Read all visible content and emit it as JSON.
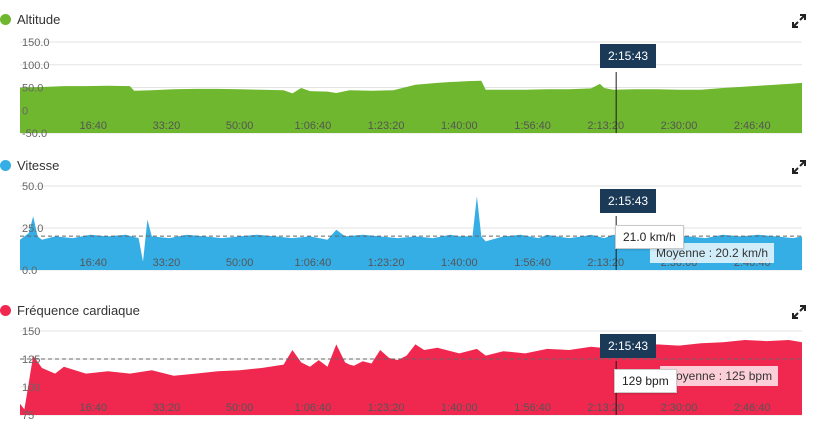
{
  "cursor": {
    "time_label": "2:15:43",
    "time_min": 135.7
  },
  "chart_data": [
    {
      "type": "area",
      "title": "Altitude",
      "color": "#6fb72e",
      "ylim": [
        -50,
        150
      ],
      "yticks": [
        "150.0",
        "100.0",
        "50.0",
        "0",
        "-50.0"
      ],
      "ytick_values": [
        150,
        100,
        50,
        0,
        -50
      ],
      "xlim": [
        0,
        178
      ],
      "xtick_labels": [
        "16:40",
        "33:20",
        "50:00",
        "1:06:40",
        "1:23:20",
        "1:40:00",
        "1:56:40",
        "2:13:20",
        "2:30:00",
        "2:46:40"
      ],
      "xtick_values": [
        16.67,
        33.33,
        50,
        66.67,
        83.33,
        100,
        116.67,
        133.33,
        150,
        166.67
      ],
      "series": [
        {
          "x": [
            0,
            5,
            10,
            15,
            20,
            25,
            26,
            30,
            35,
            40,
            45,
            50,
            55,
            60,
            62,
            64,
            66,
            70,
            72,
            75,
            80,
            85,
            90,
            95,
            98,
            100,
            102,
            105,
            106,
            110,
            115,
            120,
            125,
            130,
            132,
            133,
            135,
            140,
            145,
            150,
            155,
            160,
            165,
            170,
            175,
            178
          ],
          "y": [
            50,
            51,
            53,
            53,
            54,
            53,
            43,
            44,
            46,
            47,
            47,
            46,
            45,
            44,
            37,
            49,
            42,
            41,
            38,
            44,
            43,
            44,
            56,
            60,
            62,
            63,
            64,
            65,
            45,
            45,
            45,
            46,
            46,
            48,
            58,
            49,
            45,
            46,
            46,
            45,
            45,
            49,
            52,
            55,
            58,
            60
          ]
        }
      ]
    },
    {
      "type": "area",
      "title": "Vitesse",
      "color": "#35aee6",
      "ylim": [
        0,
        50
      ],
      "yticks": [
        "50.0",
        "25.0",
        "0.0"
      ],
      "ytick_values": [
        50,
        25,
        0
      ],
      "xlim": [
        0,
        178
      ],
      "xtick_labels": [
        "16:40",
        "33:20",
        "50:00",
        "1:06:40",
        "1:23:20",
        "1:40:00",
        "1:56:40",
        "2:13:20",
        "2:30:00",
        "2:46:40"
      ],
      "xtick_values": [
        16.67,
        33.33,
        50,
        66.67,
        83.33,
        100,
        116.67,
        133.33,
        150,
        166.67
      ],
      "average": 20.2,
      "average_label": "Moyenne : 20.2 km/h",
      "tooltip_label": "21.0 km/h",
      "series": [
        {
          "x": [
            0,
            2,
            3,
            4,
            5,
            8,
            12,
            16,
            20,
            24,
            27,
            28,
            29,
            30,
            34,
            38,
            42,
            46,
            50,
            54,
            58,
            62,
            66,
            70,
            72,
            74,
            78,
            82,
            86,
            90,
            94,
            98,
            100,
            103,
            104,
            105,
            106,
            110,
            114,
            118,
            120,
            122,
            125,
            128,
            130,
            133,
            135,
            137,
            140,
            144,
            148,
            152,
            156,
            160,
            164,
            168,
            172,
            176,
            178
          ],
          "y": [
            18,
            22,
            32,
            20,
            18,
            20,
            19,
            21,
            20,
            21,
            19,
            5,
            30,
            20,
            19,
            21,
            20,
            19,
            20,
            21,
            20,
            19,
            20,
            18,
            24,
            20,
            21,
            20,
            19,
            20,
            19,
            21,
            20,
            20,
            44,
            20,
            17,
            20,
            21,
            19,
            21,
            20,
            19,
            20,
            21,
            19,
            21,
            20,
            19,
            20,
            21,
            20,
            19,
            21,
            20,
            21,
            20,
            19,
            20
          ]
        }
      ]
    },
    {
      "type": "area",
      "title": "Fréquence cardiaque",
      "color": "#f0284f",
      "ylim": [
        75,
        150
      ],
      "yticks": [
        "150",
        "125",
        "100",
        "75"
      ],
      "ytick_values": [
        150,
        125,
        100,
        75
      ],
      "xlim": [
        0,
        178
      ],
      "xtick_labels": [
        "16:40",
        "33:20",
        "50:00",
        "1:06:40",
        "1:23:20",
        "1:40:00",
        "1:56:40",
        "2:13:20",
        "2:30:00",
        "2:46:40"
      ],
      "xtick_values": [
        16.67,
        33.33,
        50,
        66.67,
        83.33,
        100,
        116.67,
        133.33,
        150,
        166.67
      ],
      "average": 125,
      "average_label": "Moyenne : 125 bpm",
      "tooltip_label": "129 bpm",
      "series": [
        {
          "x": [
            0,
            1,
            3,
            5,
            8,
            10,
            15,
            20,
            25,
            30,
            35,
            40,
            45,
            50,
            55,
            60,
            62,
            64,
            66,
            68,
            70,
            72,
            74,
            75,
            76,
            78,
            80,
            82,
            84,
            86,
            88,
            90,
            92,
            95,
            100,
            104,
            106,
            110,
            115,
            120,
            125,
            130,
            135,
            140,
            145,
            150,
            155,
            160,
            165,
            170,
            175,
            178
          ],
          "y": [
            85,
            80,
            128,
            117,
            112,
            118,
            112,
            114,
            112,
            115,
            110,
            112,
            114,
            115,
            117,
            120,
            133,
            122,
            118,
            124,
            118,
            138,
            122,
            120,
            119,
            123,
            121,
            133,
            126,
            124,
            128,
            138,
            133,
            135,
            130,
            134,
            128,
            132,
            130,
            134,
            133,
            136,
            134,
            136,
            138,
            137,
            139,
            140,
            142,
            141,
            142,
            140
          ]
        }
      ]
    }
  ]
}
